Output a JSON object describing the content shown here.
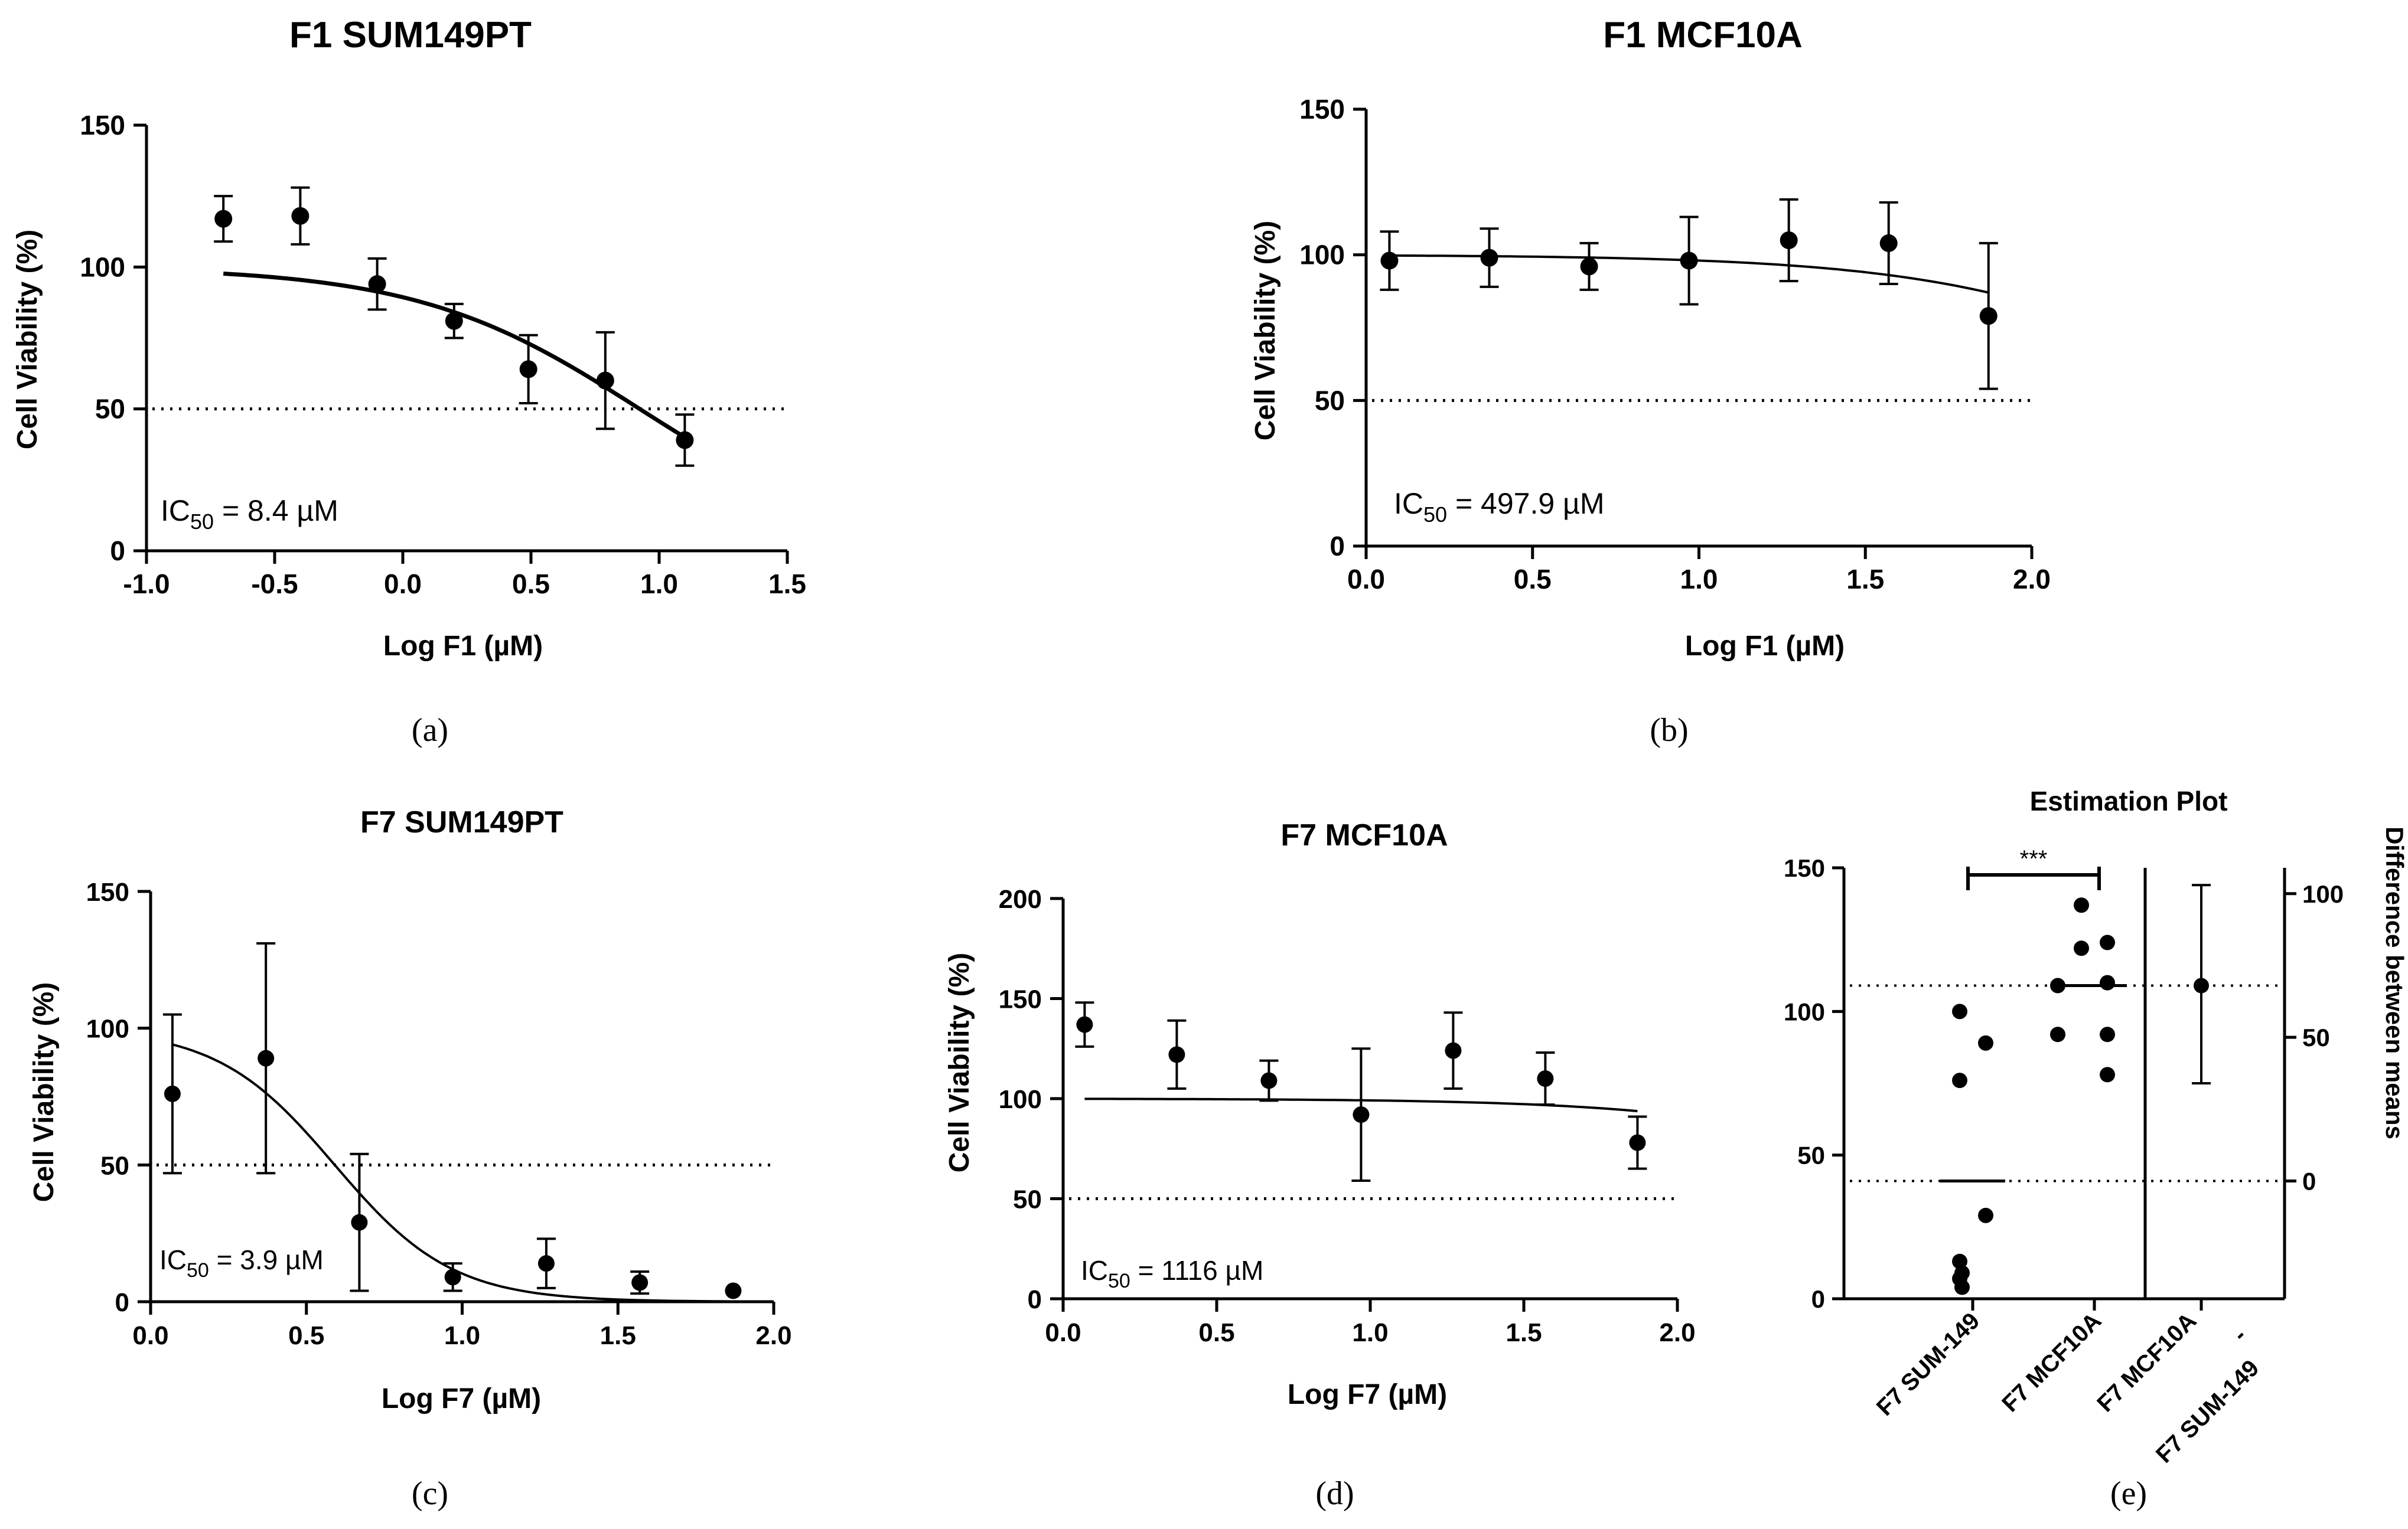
{
  "chart_data": [
    {
      "panel": "a",
      "caption": "(a)",
      "type": "scatter",
      "title": "F1 SUM149PT",
      "xlabel": "Log F1 (µM)",
      "ylabel": "Cell Viability (%)",
      "xlim": [
        -1.0,
        1.5
      ],
      "ylim": [
        0,
        150
      ],
      "xticks": [
        "-1.0",
        "-0.5",
        "0.0",
        "0.5",
        "1.0",
        "1.5"
      ],
      "yticks": [
        "0",
        "50",
        "100",
        "150"
      ],
      "reference_line": 50,
      "annotation": {
        "prefix": "IC",
        "subscript": "50",
        "suffix": " = 8.4 µM"
      },
      "points": [
        {
          "x": -0.7,
          "y": 117,
          "err": 8
        },
        {
          "x": -0.4,
          "y": 118,
          "err": 10
        },
        {
          "x": -0.1,
          "y": 94,
          "err": 9
        },
        {
          "x": 0.2,
          "y": 81,
          "err": 6
        },
        {
          "x": 0.49,
          "y": 64,
          "err": 12
        },
        {
          "x": 0.79,
          "y": 60,
          "err": 17
        },
        {
          "x": 1.1,
          "y": 39,
          "err": 9
        }
      ],
      "fit": {
        "top": 100,
        "ec50_log": 0.924,
        "hill": 1.0,
        "x_from": -0.7,
        "x_to": 1.1
      }
    },
    {
      "panel": "b",
      "caption": "(b)",
      "type": "scatter",
      "title": "F1 MCF10A",
      "xlabel": "Log F1 (µM)",
      "ylabel": "Cell Viability (%)",
      "xlim": [
        0.0,
        2.0
      ],
      "ylim": [
        0,
        150
      ],
      "xticks": [
        "0.0",
        "0.5",
        "1.0",
        "1.5",
        "2.0"
      ],
      "yticks": [
        "0",
        "50",
        "100",
        "150"
      ],
      "reference_line": 50,
      "annotation": {
        "prefix": "IC",
        "subscript": "50",
        "suffix": " = 497.9 µM"
      },
      "points": [
        {
          "x": 0.07,
          "y": 98,
          "err": 10
        },
        {
          "x": 0.37,
          "y": 99,
          "err": 10
        },
        {
          "x": 0.67,
          "y": 96,
          "err": 8
        },
        {
          "x": 0.97,
          "y": 98,
          "err": 15
        },
        {
          "x": 1.27,
          "y": 105,
          "err": 14
        },
        {
          "x": 1.57,
          "y": 104,
          "err": 14
        },
        {
          "x": 1.87,
          "y": 79,
          "err": 25
        }
      ],
      "fit": {
        "top": 100,
        "ec50_log": 2.697,
        "hill": 1.0,
        "x_from": 0.07,
        "x_to": 1.87
      }
    },
    {
      "panel": "c",
      "caption": "(c)",
      "type": "scatter",
      "title": "F7 SUM149PT",
      "xlabel": "Log F7 (µM)",
      "ylabel": "Cell Viability (%)",
      "xlim": [
        0.0,
        2.0
      ],
      "ylim": [
        0,
        150
      ],
      "xticks": [
        "0.0",
        "0.5",
        "1.0",
        "1.5",
        "2.0"
      ],
      "yticks": [
        "0",
        "50",
        "100",
        "150"
      ],
      "reference_line": 50,
      "annotation": {
        "prefix": "IC",
        "subscript": "50",
        "suffix": " = 3.9 µM"
      },
      "points": [
        {
          "x": 0.07,
          "y": 76,
          "err": 29
        },
        {
          "x": 0.37,
          "y": 89,
          "err": 42
        },
        {
          "x": 0.67,
          "y": 29,
          "err": 25
        },
        {
          "x": 0.97,
          "y": 9,
          "err": 5
        },
        {
          "x": 1.27,
          "y": 14,
          "err": 9
        },
        {
          "x": 1.57,
          "y": 7,
          "err": 4
        },
        {
          "x": 1.87,
          "y": 4,
          "err": 0
        }
      ],
      "fit": {
        "top": 100,
        "ec50_log": 0.591,
        "hill": 2.3,
        "x_from": 0.07,
        "x_to": 1.87
      }
    },
    {
      "panel": "d",
      "caption": "(d)",
      "type": "scatter",
      "title": "F7 MCF10A",
      "xlabel": "Log F7 (µM)",
      "ylabel": "Cell Viability (%)",
      "xlim": [
        0.0,
        2.0
      ],
      "ylim": [
        0,
        200
      ],
      "xticks": [
        "0.0",
        "0.5",
        "1.0",
        "1.5",
        "2.0"
      ],
      "yticks": [
        "0",
        "50",
        "100",
        "150",
        "200"
      ],
      "reference_line": 50,
      "annotation": {
        "prefix": "IC",
        "subscript": "50",
        "suffix": " = 1116 µM"
      },
      "points": [
        {
          "x": 0.07,
          "y": 137,
          "err": 11
        },
        {
          "x": 0.37,
          "y": 122,
          "err": 17
        },
        {
          "x": 0.67,
          "y": 109,
          "err": 10
        },
        {
          "x": 0.97,
          "y": 92,
          "err": 33
        },
        {
          "x": 1.27,
          "y": 124,
          "err": 19
        },
        {
          "x": 1.57,
          "y": 110,
          "err": 13
        },
        {
          "x": 1.87,
          "y": 78,
          "err": 13
        }
      ],
      "fit": {
        "top": 100,
        "ec50_log": 3.048,
        "hill": 1.0,
        "x_from": 0.07,
        "x_to": 1.87
      }
    },
    {
      "panel": "e",
      "caption": "(e)",
      "type": "scatter",
      "title": "Estimation Plot",
      "ylabel_right": "Difference between means",
      "ylim": [
        0,
        150
      ],
      "yticks": [
        "0",
        "50",
        "100",
        "150"
      ],
      "right_ylim": [
        -40,
        105
      ],
      "right_yticks": [
        "0",
        "50",
        "100"
      ],
      "significance": "***",
      "categories": [
        "F7 SUM-149",
        "F7 MCF10A"
      ],
      "difference_label": [
        "F7 MCF10A",
        "-",
        "F7 SUM-149"
      ],
      "groups": [
        {
          "name": "F7 SUM-149",
          "mean": 41,
          "values": [
            100,
            89,
            76,
            29,
            13,
            9,
            7,
            4
          ]
        },
        {
          "name": "F7 MCF10A",
          "mean": 109,
          "values": [
            137,
            124,
            122,
            110,
            109,
            92,
            92,
            78
          ]
        }
      ],
      "reference_lines": [
        109,
        41
      ],
      "difference": {
        "mean": 68,
        "ci": [
          34,
          103
        ]
      }
    }
  ]
}
